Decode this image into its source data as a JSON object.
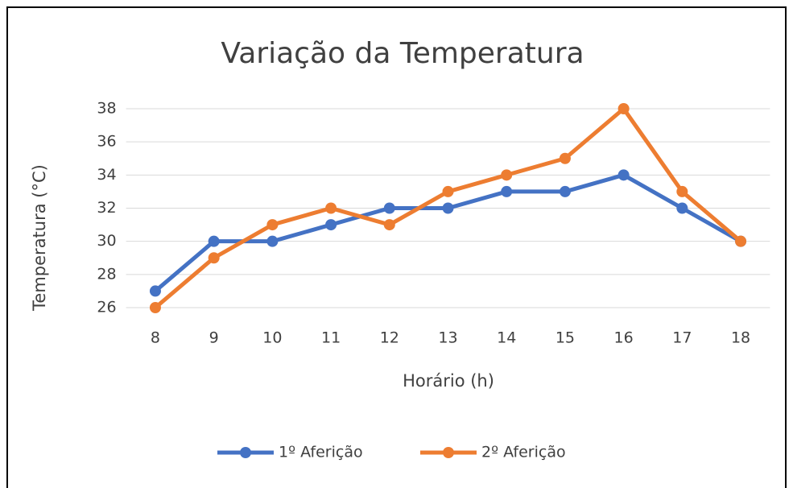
{
  "chart_data": {
    "type": "line",
    "title": "Variação da Temperatura",
    "x_label": "Horário (h)",
    "y_label": "Temperatura (°C)",
    "x": [
      8,
      9,
      10,
      11,
      12,
      13,
      14,
      15,
      16,
      17,
      18
    ],
    "xlim": [
      7.5,
      18.5
    ],
    "xticks": [
      8,
      9,
      10,
      11,
      12,
      13,
      14,
      15,
      16,
      17,
      18
    ],
    "ylim": [
      26,
      38
    ],
    "yticks": [
      26,
      28,
      30,
      32,
      34,
      36,
      38
    ],
    "grid": true,
    "legend": "bottom",
    "series": [
      {
        "name": "1º Aferição",
        "color": "#4472c4",
        "values": [
          27,
          30,
          30,
          31,
          32,
          32,
          33,
          33,
          34,
          32,
          30
        ]
      },
      {
        "name": "2º Aferição",
        "color": "#ed7d31",
        "values": [
          26,
          29,
          31,
          32,
          31,
          33,
          34,
          35,
          38,
          33,
          30
        ]
      }
    ]
  }
}
